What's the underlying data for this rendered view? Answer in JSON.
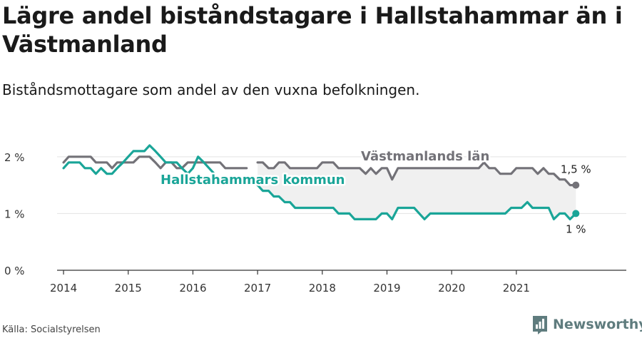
{
  "title": "Lägre andel biståndstagare i Hallstahammar än i Västmanland",
  "subtitle": "Biståndsmottagare som andel av den vuxna befolkningen.",
  "source": "Källa: Socialstyrelsen",
  "brand": "Newsworthy",
  "colors": {
    "region": "#737278",
    "municipality": "#1aa598",
    "shade": "#f0f0f0",
    "grid": "#e3e3e3",
    "axis": "#333333",
    "brand": "#5f7c7e"
  },
  "chart_data": {
    "type": "line",
    "title": "Lägre andel biståndstagare i Hallstahammar än i Västmanland",
    "ylim": [
      0,
      2.4
    ],
    "yticks": [
      0,
      1,
      2
    ],
    "ytick_labels": [
      "0 %",
      "1 %",
      "2 %"
    ],
    "x_range": [
      2013.9,
      2022.7
    ],
    "xticks": [
      2014,
      2015,
      2016,
      2017,
      2018,
      2019,
      2020,
      2021
    ],
    "xtick_labels": [
      "2014",
      "2015",
      "2016",
      "2017",
      "2018",
      "2019",
      "2020",
      "2021"
    ],
    "grid": "horizontal",
    "series": [
      {
        "name": "Västmanlands län",
        "color": "#737278",
        "end_label": "1,5 %",
        "points": [
          [
            2014.0,
            1.9
          ],
          [
            2014.08,
            2.0
          ],
          [
            2014.17,
            2.0
          ],
          [
            2014.25,
            2.0
          ],
          [
            2014.33,
            2.0
          ],
          [
            2014.42,
            2.0
          ],
          [
            2014.5,
            1.9
          ],
          [
            2014.58,
            1.9
          ],
          [
            2014.67,
            1.9
          ],
          [
            2014.75,
            1.8
          ],
          [
            2014.83,
            1.9
          ],
          [
            2014.92,
            1.9
          ],
          [
            2015.0,
            1.9
          ],
          [
            2015.08,
            1.9
          ],
          [
            2015.17,
            2.0
          ],
          [
            2015.25,
            2.0
          ],
          [
            2015.33,
            2.0
          ],
          [
            2015.42,
            1.9
          ],
          [
            2015.5,
            1.8
          ],
          [
            2015.58,
            1.9
          ],
          [
            2015.67,
            1.9
          ],
          [
            2015.75,
            1.8
          ],
          [
            2015.83,
            1.8
          ],
          [
            2015.92,
            1.9
          ],
          [
            2016.0,
            1.9
          ],
          [
            2016.08,
            1.9
          ],
          [
            2016.17,
            1.9
          ],
          [
            2016.25,
            1.9
          ],
          [
            2016.33,
            1.9
          ],
          [
            2016.42,
            1.9
          ],
          [
            2016.5,
            1.8
          ],
          [
            2016.58,
            1.8
          ],
          [
            2016.67,
            1.8
          ],
          [
            2016.75,
            1.8
          ],
          [
            2016.83,
            1.8
          ],
          [
            2016.92,
            null
          ],
          [
            2017.0,
            1.9
          ],
          [
            2017.08,
            1.9
          ],
          [
            2017.17,
            1.8
          ],
          [
            2017.25,
            1.8
          ],
          [
            2017.33,
            1.9
          ],
          [
            2017.42,
            1.9
          ],
          [
            2017.5,
            1.8
          ],
          [
            2017.58,
            1.8
          ],
          [
            2017.67,
            1.8
          ],
          [
            2017.75,
            1.8
          ],
          [
            2017.83,
            1.8
          ],
          [
            2017.92,
            1.8
          ],
          [
            2018.0,
            1.9
          ],
          [
            2018.08,
            1.9
          ],
          [
            2018.17,
            1.9
          ],
          [
            2018.25,
            1.8
          ],
          [
            2018.33,
            1.8
          ],
          [
            2018.42,
            1.8
          ],
          [
            2018.5,
            1.8
          ],
          [
            2018.58,
            1.8
          ],
          [
            2018.67,
            1.7
          ],
          [
            2018.75,
            1.8
          ],
          [
            2018.83,
            1.7
          ],
          [
            2018.92,
            1.8
          ],
          [
            2019.0,
            1.8
          ],
          [
            2019.08,
            1.6
          ],
          [
            2019.17,
            1.8
          ],
          [
            2019.25,
            1.8
          ],
          [
            2019.33,
            1.8
          ],
          [
            2019.42,
            1.8
          ],
          [
            2019.5,
            1.8
          ],
          [
            2019.58,
            1.8
          ],
          [
            2019.67,
            1.8
          ],
          [
            2019.75,
            1.8
          ],
          [
            2019.83,
            1.8
          ],
          [
            2019.92,
            1.8
          ],
          [
            2020.0,
            1.8
          ],
          [
            2020.08,
            1.8
          ],
          [
            2020.17,
            1.8
          ],
          [
            2020.25,
            1.8
          ],
          [
            2020.33,
            1.8
          ],
          [
            2020.42,
            1.8
          ],
          [
            2020.5,
            1.9
          ],
          [
            2020.58,
            1.8
          ],
          [
            2020.67,
            1.8
          ],
          [
            2020.75,
            1.7
          ],
          [
            2020.83,
            1.7
          ],
          [
            2020.92,
            1.7
          ],
          [
            2021.0,
            1.8
          ],
          [
            2021.08,
            1.8
          ],
          [
            2021.17,
            1.8
          ],
          [
            2021.25,
            1.8
          ],
          [
            2021.33,
            1.7
          ],
          [
            2021.42,
            1.8
          ],
          [
            2021.5,
            1.7
          ],
          [
            2021.58,
            1.7
          ],
          [
            2021.67,
            1.6
          ],
          [
            2021.75,
            1.6
          ],
          [
            2021.83,
            1.5
          ],
          [
            2021.92,
            1.5
          ]
        ]
      },
      {
        "name": "Hallstahammars kommun",
        "color": "#1aa598",
        "end_label": "1 %",
        "points": [
          [
            2014.0,
            1.8
          ],
          [
            2014.08,
            1.9
          ],
          [
            2014.17,
            1.9
          ],
          [
            2014.25,
            1.9
          ],
          [
            2014.33,
            1.8
          ],
          [
            2014.42,
            1.8
          ],
          [
            2014.5,
            1.7
          ],
          [
            2014.58,
            1.8
          ],
          [
            2014.67,
            1.7
          ],
          [
            2014.75,
            1.7
          ],
          [
            2014.83,
            1.8
          ],
          [
            2014.92,
            1.9
          ],
          [
            2015.0,
            2.0
          ],
          [
            2015.08,
            2.1
          ],
          [
            2015.17,
            2.1
          ],
          [
            2015.25,
            2.1
          ],
          [
            2015.33,
            2.2
          ],
          [
            2015.42,
            2.1
          ],
          [
            2015.5,
            2.0
          ],
          [
            2015.58,
            1.9
          ],
          [
            2015.67,
            1.9
          ],
          [
            2015.75,
            1.9
          ],
          [
            2015.83,
            1.8
          ],
          [
            2015.92,
            1.7
          ],
          [
            2016.0,
            1.8
          ],
          [
            2016.08,
            2.0
          ],
          [
            2016.17,
            1.9
          ],
          [
            2016.25,
            1.8
          ],
          [
            2016.33,
            1.7
          ],
          [
            2016.42,
            null
          ],
          [
            2016.5,
            null
          ],
          [
            2016.58,
            null
          ],
          [
            2016.67,
            null
          ],
          [
            2016.75,
            null
          ],
          [
            2016.83,
            null
          ],
          [
            2016.92,
            null
          ],
          [
            2017.0,
            1.5
          ],
          [
            2017.08,
            1.4
          ],
          [
            2017.17,
            1.4
          ],
          [
            2017.25,
            1.3
          ],
          [
            2017.33,
            1.3
          ],
          [
            2017.42,
            1.2
          ],
          [
            2017.5,
            1.2
          ],
          [
            2017.58,
            1.1
          ],
          [
            2017.67,
            1.1
          ],
          [
            2017.75,
            1.1
          ],
          [
            2017.83,
            1.1
          ],
          [
            2017.92,
            1.1
          ],
          [
            2018.0,
            1.1
          ],
          [
            2018.08,
            1.1
          ],
          [
            2018.17,
            1.1
          ],
          [
            2018.25,
            1.0
          ],
          [
            2018.33,
            1.0
          ],
          [
            2018.42,
            1.0
          ],
          [
            2018.5,
            0.9
          ],
          [
            2018.58,
            0.9
          ],
          [
            2018.67,
            0.9
          ],
          [
            2018.75,
            0.9
          ],
          [
            2018.83,
            0.9
          ],
          [
            2018.92,
            1.0
          ],
          [
            2019.0,
            1.0
          ],
          [
            2019.08,
            0.9
          ],
          [
            2019.17,
            1.1
          ],
          [
            2019.25,
            1.1
          ],
          [
            2019.33,
            1.1
          ],
          [
            2019.42,
            1.1
          ],
          [
            2019.5,
            1.0
          ],
          [
            2019.58,
            0.9
          ],
          [
            2019.67,
            1.0
          ],
          [
            2019.75,
            1.0
          ],
          [
            2019.83,
            1.0
          ],
          [
            2019.92,
            1.0
          ],
          [
            2020.0,
            1.0
          ],
          [
            2020.08,
            1.0
          ],
          [
            2020.17,
            1.0
          ],
          [
            2020.25,
            1.0
          ],
          [
            2020.33,
            1.0
          ],
          [
            2020.42,
            1.0
          ],
          [
            2020.5,
            1.0
          ],
          [
            2020.58,
            1.0
          ],
          [
            2020.67,
            1.0
          ],
          [
            2020.75,
            1.0
          ],
          [
            2020.83,
            1.0
          ],
          [
            2020.92,
            1.1
          ],
          [
            2021.0,
            1.1
          ],
          [
            2021.08,
            1.1
          ],
          [
            2021.17,
            1.2
          ],
          [
            2021.25,
            1.1
          ],
          [
            2021.33,
            1.1
          ],
          [
            2021.42,
            1.1
          ],
          [
            2021.5,
            1.1
          ],
          [
            2021.58,
            0.9
          ],
          [
            2021.67,
            1.0
          ],
          [
            2021.75,
            1.0
          ],
          [
            2021.83,
            0.9
          ],
          [
            2021.92,
            1.0
          ]
        ]
      }
    ]
  }
}
